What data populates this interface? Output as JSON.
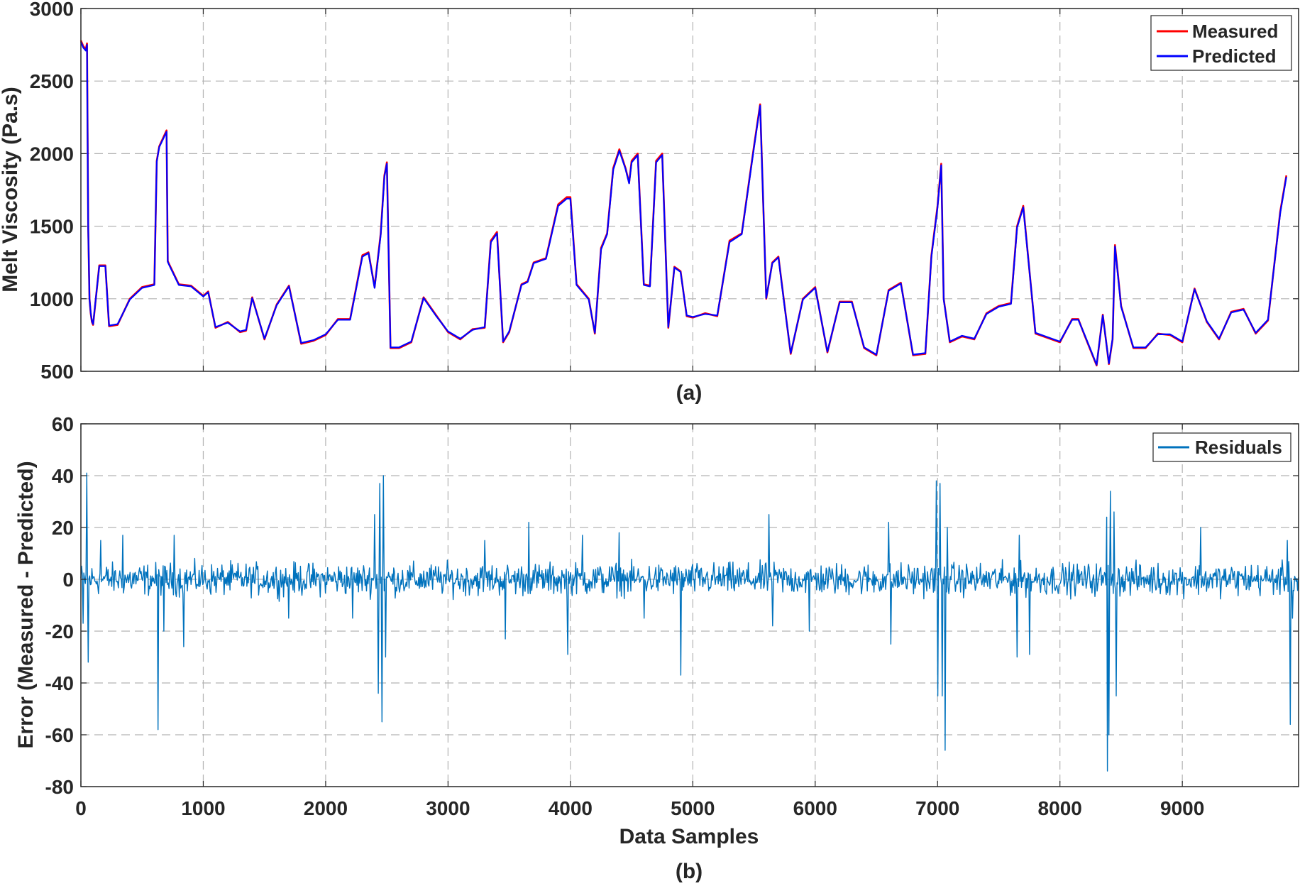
{
  "chart_data": [
    {
      "type": "line",
      "panel_label": "(a)",
      "xlabel": "",
      "ylabel": "Melt Viscosity (Pa.s)",
      "xlim": [
        0,
        9950
      ],
      "ylim": [
        500,
        3000
      ],
      "xticks": [
        0,
        1000,
        2000,
        3000,
        4000,
        5000,
        6000,
        7000,
        8000,
        9000
      ],
      "yticks": [
        500,
        1000,
        1500,
        2000,
        2500,
        3000
      ],
      "xtick_labels_visible": false,
      "grid": true,
      "legend_position": "top-right",
      "series": [
        {
          "name": "Measured",
          "color": "#ff0000"
        },
        {
          "name": "Predicted",
          "color": "#0000ff"
        }
      ],
      "x": [
        0,
        20,
        40,
        50,
        60,
        70,
        80,
        90,
        100,
        150,
        200,
        230,
        300,
        400,
        500,
        600,
        620,
        640,
        700,
        710,
        720,
        800,
        900,
        1000,
        1040,
        1100,
        1200,
        1300,
        1350,
        1400,
        1500,
        1600,
        1700,
        1800,
        1900,
        2000,
        2100,
        2200,
        2300,
        2350,
        2400,
        2450,
        2480,
        2500,
        2530,
        2600,
        2700,
        2800,
        2900,
        3000,
        3100,
        3200,
        3300,
        3350,
        3400,
        3450,
        3500,
        3600,
        3650,
        3700,
        3800,
        3900,
        3970,
        4000,
        4050,
        4100,
        4150,
        4200,
        4250,
        4300,
        4350,
        4400,
        4450,
        4480,
        4500,
        4550,
        4600,
        4650,
        4700,
        4750,
        4800,
        4850,
        4900,
        4950,
        5000,
        5100,
        5200,
        5300,
        5400,
        5500,
        5550,
        5600,
        5650,
        5700,
        5750,
        5800,
        5900,
        6000,
        6100,
        6200,
        6300,
        6400,
        6500,
        6600,
        6700,
        6800,
        6900,
        6950,
        7000,
        7030,
        7050,
        7100,
        7200,
        7300,
        7400,
        7500,
        7600,
        7650,
        7700,
        7800,
        7900,
        8000,
        8100,
        8150,
        8200,
        8300,
        8350,
        8400,
        8430,
        8450,
        8500,
        8600,
        8700,
        8800,
        8900,
        9000,
        9100,
        9200,
        9300,
        9400,
        9500,
        9600,
        9700,
        9800,
        9850,
        9900,
        9950
      ],
      "measured": [
        2780,
        2740,
        2720,
        2760,
        1500,
        1000,
        900,
        840,
        820,
        1230,
        1230,
        810,
        820,
        1000,
        1080,
        1100,
        1950,
        2050,
        2160,
        1260,
        1240,
        1100,
        1090,
        1020,
        1050,
        800,
        840,
        770,
        780,
        1010,
        720,
        960,
        1090,
        690,
        710,
        750,
        860,
        860,
        1300,
        1320,
        1080,
        1450,
        1850,
        1940,
        660,
        660,
        700,
        1010,
        890,
        770,
        720,
        790,
        800,
        1400,
        1460,
        700,
        770,
        1100,
        1120,
        1250,
        1280,
        1650,
        1700,
        1700,
        1100,
        1050,
        1000,
        760,
        1350,
        1450,
        1900,
        2030,
        1900,
        1800,
        1950,
        2000,
        1100,
        1090,
        1950,
        2000,
        800,
        1220,
        1190,
        880,
        870,
        900,
        880,
        1400,
        1450,
        2050,
        2340,
        1000,
        1250,
        1290,
        950,
        620,
        1000,
        1080,
        630,
        980,
        980,
        660,
        610,
        1060,
        1110,
        610,
        620,
        1300,
        1640,
        1930,
        1000,
        700,
        740,
        720,
        900,
        950,
        970,
        1500,
        1640,
        760,
        730,
        700,
        860,
        860,
        750,
        540,
        890,
        550,
        720,
        1370,
        950,
        660,
        660,
        760,
        750,
        700,
        1070,
        840,
        720,
        910,
        930,
        760,
        850,
        1600,
        1850
      ],
      "predicted": [
        2770,
        2730,
        2710,
        2750,
        1490,
        1000,
        905,
        845,
        825,
        1225,
        1225,
        815,
        825,
        995,
        1075,
        1095,
        1945,
        2045,
        2150,
        1255,
        1235,
        1095,
        1085,
        1015,
        1045,
        805,
        835,
        775,
        785,
        1005,
        725,
        955,
        1085,
        695,
        715,
        755,
        855,
        855,
        1290,
        1315,
        1075,
        1440,
        1840,
        1930,
        665,
        665,
        705,
        1005,
        885,
        775,
        725,
        785,
        805,
        1390,
        1450,
        705,
        775,
        1095,
        1115,
        1245,
        1275,
        1640,
        1690,
        1690,
        1095,
        1045,
        995,
        765,
        1340,
        1445,
        1890,
        2020,
        1895,
        1795,
        1940,
        1990,
        1095,
        1085,
        1940,
        1990,
        805,
        1215,
        1185,
        885,
        875,
        895,
        885,
        1390,
        1445,
        2040,
        2330,
        1005,
        1245,
        1285,
        945,
        625,
        995,
        1075,
        635,
        975,
        975,
        665,
        615,
        1055,
        1105,
        615,
        625,
        1290,
        1630,
        1920,
        995,
        705,
        745,
        725,
        895,
        945,
        965,
        1490,
        1630,
        765,
        735,
        705,
        855,
        855,
        755,
        545,
        885,
        555,
        725,
        1360,
        945,
        665,
        665,
        755,
        755,
        705,
        1065,
        845,
        725,
        905,
        925,
        765,
        855,
        1590,
        1840
      ]
    },
    {
      "type": "line",
      "panel_label": "(b)",
      "xlabel": "Data Samples",
      "ylabel": "Error (Measured - Predicted)",
      "xlim": [
        0,
        9950
      ],
      "ylim": [
        -80,
        60
      ],
      "xticks": [
        0,
        1000,
        2000,
        3000,
        4000,
        5000,
        6000,
        7000,
        8000,
        9000
      ],
      "yticks": [
        -80,
        -60,
        -40,
        -20,
        0,
        20,
        40,
        60
      ],
      "xtick_labels_visible": true,
      "grid": true,
      "legend_position": "top-right",
      "series": [
        {
          "name": "Residuals",
          "color": "#0072bd"
        }
      ],
      "noise_std": 3,
      "spikes": [
        {
          "x": 20,
          "y": -17
        },
        {
          "x": 50,
          "y": 41
        },
        {
          "x": 60,
          "y": -32
        },
        {
          "x": 160,
          "y": 15
        },
        {
          "x": 340,
          "y": 17
        },
        {
          "x": 630,
          "y": -58
        },
        {
          "x": 680,
          "y": -20
        },
        {
          "x": 760,
          "y": 17
        },
        {
          "x": 840,
          "y": -26
        },
        {
          "x": 1700,
          "y": -15
        },
        {
          "x": 2220,
          "y": -15
        },
        {
          "x": 2400,
          "y": 25
        },
        {
          "x": 2430,
          "y": -44
        },
        {
          "x": 2440,
          "y": 37
        },
        {
          "x": 2460,
          "y": -55
        },
        {
          "x": 2470,
          "y": 40
        },
        {
          "x": 2490,
          "y": -30
        },
        {
          "x": 3300,
          "y": 15
        },
        {
          "x": 3470,
          "y": -23
        },
        {
          "x": 3660,
          "y": 22
        },
        {
          "x": 3980,
          "y": -29
        },
        {
          "x": 4100,
          "y": 17
        },
        {
          "x": 4400,
          "y": 18
        },
        {
          "x": 4600,
          "y": -15
        },
        {
          "x": 4900,
          "y": -37
        },
        {
          "x": 5620,
          "y": 25
        },
        {
          "x": 5650,
          "y": -18
        },
        {
          "x": 5950,
          "y": -20
        },
        {
          "x": 6600,
          "y": 22
        },
        {
          "x": 6620,
          "y": -25
        },
        {
          "x": 6990,
          "y": 38
        },
        {
          "x": 7000,
          "y": -45
        },
        {
          "x": 7020,
          "y": 37
        },
        {
          "x": 7040,
          "y": -45
        },
        {
          "x": 7060,
          "y": -66
        },
        {
          "x": 7080,
          "y": 20
        },
        {
          "x": 7650,
          "y": -30
        },
        {
          "x": 7670,
          "y": 17
        },
        {
          "x": 7750,
          "y": -29
        },
        {
          "x": 8380,
          "y": 24
        },
        {
          "x": 8390,
          "y": -74
        },
        {
          "x": 8400,
          "y": -60
        },
        {
          "x": 8410,
          "y": 34
        },
        {
          "x": 8440,
          "y": 26
        },
        {
          "x": 8460,
          "y": -45
        },
        {
          "x": 9150,
          "y": 20
        },
        {
          "x": 9860,
          "y": 15
        },
        {
          "x": 9880,
          "y": -56
        },
        {
          "x": 9900,
          "y": -15
        }
      ]
    }
  ]
}
